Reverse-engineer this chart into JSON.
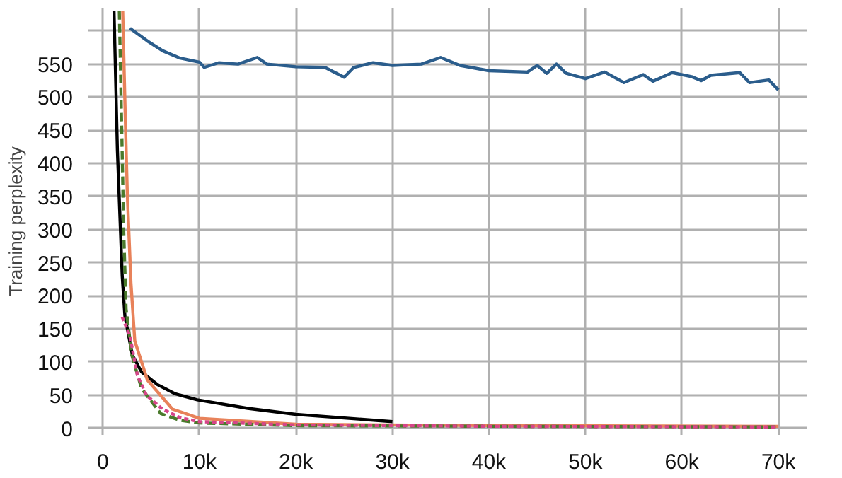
{
  "chart_data": {
    "type": "line",
    "ylabel": "Training perplexity",
    "grid": true,
    "xlim": [
      -1500,
      73000
    ],
    "ylim": [
      -10,
      635
    ],
    "xticks": [
      {
        "value": 0,
        "label": "0"
      },
      {
        "value": 10000,
        "label": "10k"
      },
      {
        "value": 20000,
        "label": "20k"
      },
      {
        "value": 30000,
        "label": "30k"
      },
      {
        "value": 40000,
        "label": "40k"
      },
      {
        "value": 50000,
        "label": "50k"
      },
      {
        "value": 60000,
        "label": "60k"
      },
      {
        "value": 70000,
        "label": "70k"
      }
    ],
    "yticks": [
      0,
      50,
      100,
      150,
      200,
      250,
      300,
      350,
      400,
      450,
      500,
      550,
      {
        "value": 600,
        "label": null
      }
    ],
    "series": [
      {
        "color": "#2b5d8c",
        "line_style": "solid",
        "x": [
          2800,
          4600,
          6200,
          8000,
          10000,
          10500,
          12000,
          14000,
          16000,
          17000,
          20000,
          23000,
          25000,
          26000,
          28000,
          30000,
          33000,
          35000,
          37000,
          40000,
          44000,
          45000,
          46000,
          47000,
          48000,
          50000,
          52000,
          54000,
          56000,
          57000,
          59000,
          61000,
          62000,
          63000,
          66000,
          67000,
          69000,
          70000
        ],
        "values": [
          604,
          585,
          570,
          559,
          553,
          545,
          552,
          550,
          560,
          550,
          546,
          545,
          530,
          545,
          552,
          548,
          550,
          560,
          548,
          540,
          538,
          548,
          536,
          550,
          536,
          528,
          538,
          522,
          534,
          524,
          537,
          531,
          525,
          533,
          537,
          522,
          526,
          511
        ]
      },
      {
        "color": "#000000",
        "line_style": "solid",
        "x": [
          1150,
          1500,
          2000,
          2280,
          3060,
          4000,
          5640,
          7500,
          9780,
          15000,
          20000,
          30000
        ],
        "values": [
          630,
          420,
          230,
          169,
          110,
          85,
          66,
          52,
          43,
          30,
          21,
          10
        ]
      },
      {
        "color": "#e8825a",
        "line_style": "solid",
        "x": [
          2050,
          2300,
          2530,
          2900,
          3300,
          4600,
          7200,
          10000,
          20000,
          40000,
          70000
        ],
        "values": [
          630,
          480,
          353,
          220,
          132,
          73,
          29,
          15,
          6,
          4,
          3
        ]
      },
      {
        "color": "#4a7a2c",
        "line_style": "dashed",
        "x": [
          1700,
          1950,
          2150,
          2400,
          3000,
          4000,
          6000,
          8000,
          10000,
          20000,
          40000,
          70000
        ],
        "values": [
          630,
          450,
          300,
          180,
          110,
          60,
          22,
          12,
          8,
          4,
          3,
          2
        ]
      },
      {
        "color": "#d6458a",
        "line_style": "dotted",
        "x": [
          2000,
          2800,
          3570,
          4500,
          6160,
          8000,
          10000,
          20000,
          40000,
          70000
        ],
        "values": [
          168,
          139,
          80,
          50,
          29,
          16,
          10,
          5,
          3,
          2
        ]
      }
    ]
  }
}
